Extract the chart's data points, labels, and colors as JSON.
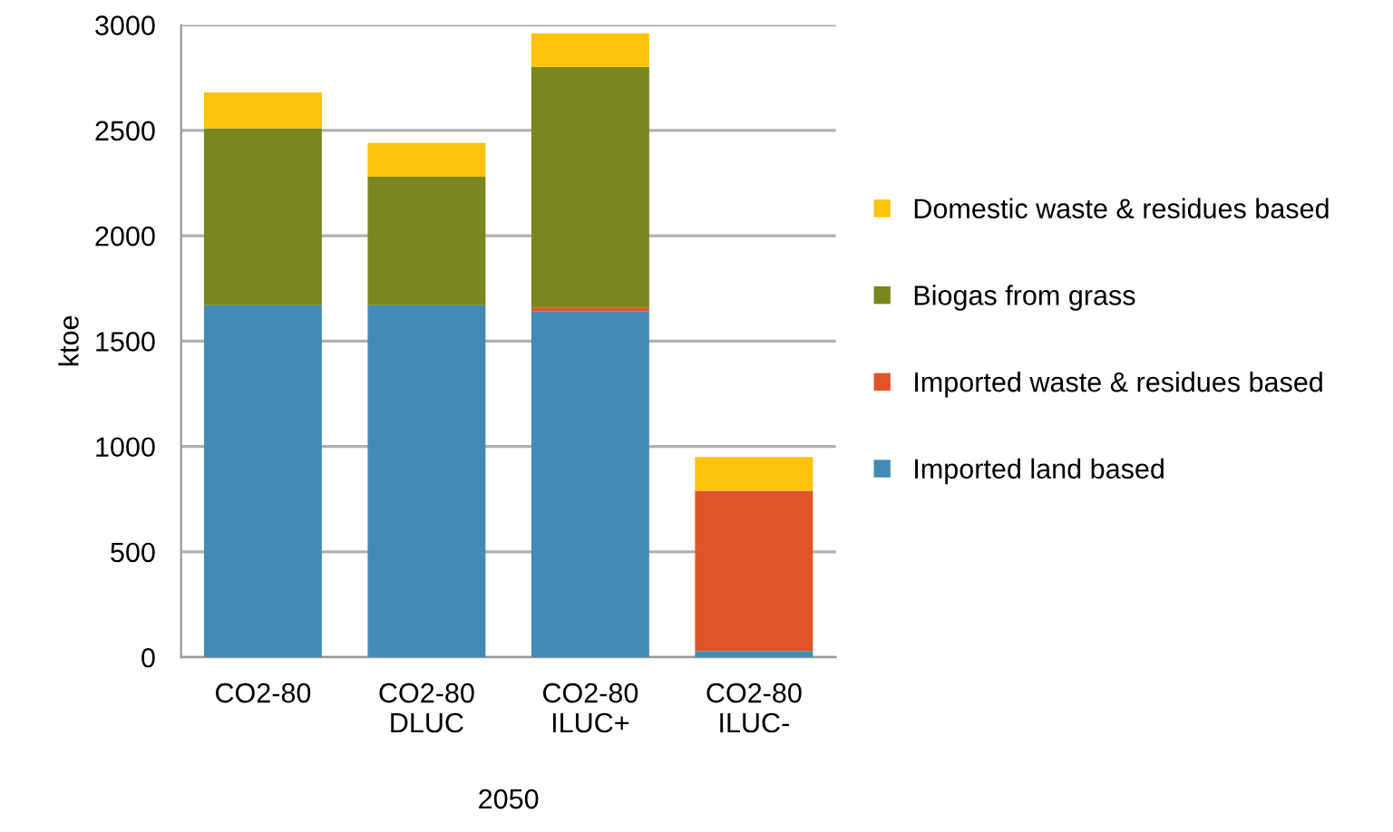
{
  "chart_data": {
    "type": "bar",
    "stacked": true,
    "ylabel": "ktoe",
    "xlabel": "2050",
    "categories": [
      "CO2-80",
      "CO2-80\nDLUC",
      "CO2-80\nILUC+",
      "CO2-80\nILUC-"
    ],
    "series": [
      {
        "name": "Imported land based",
        "color": "#428bb4",
        "values": [
          1670,
          1670,
          1640,
          30
        ]
      },
      {
        "name": "Imported waste & residues based",
        "color": "#e05427",
        "values": [
          0,
          0,
          20,
          760
        ]
      },
      {
        "name": "Biogas from grass",
        "color": "#7a861e",
        "values": [
          840,
          610,
          1140,
          0
        ]
      },
      {
        "name": "Domestic waste & residues based",
        "color": "#fec20c",
        "values": [
          170,
          160,
          160,
          160
        ]
      }
    ],
    "ylim": [
      0,
      3000
    ],
    "yticks": [
      0,
      500,
      1000,
      1500,
      2000,
      2500,
      3000
    ],
    "grid": "y",
    "legend": "right"
  }
}
